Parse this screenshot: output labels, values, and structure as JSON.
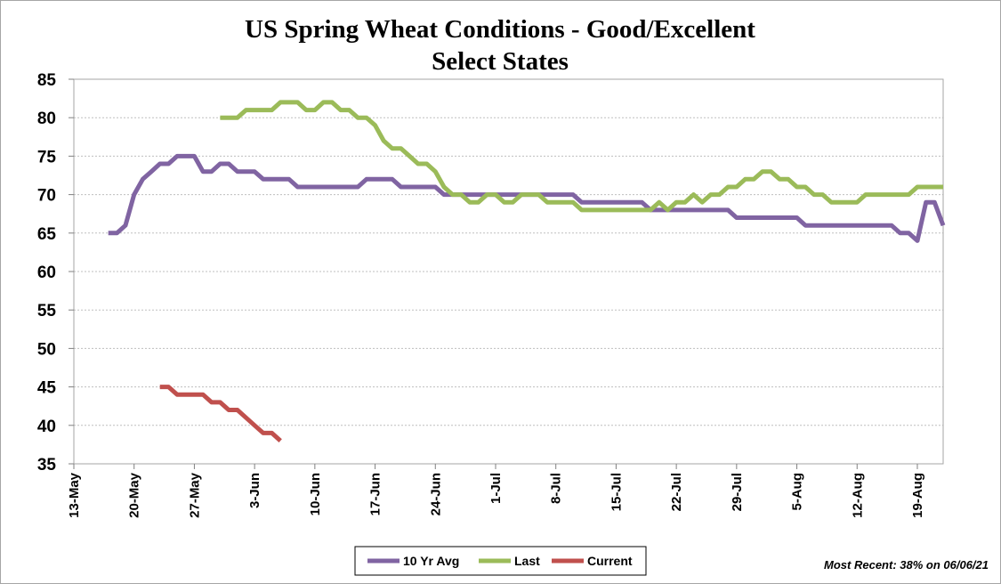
{
  "chart_data": {
    "type": "line",
    "title_line1": "US Spring Wheat Conditions - Good/Excellent",
    "title_line2": "Select States",
    "x_ticks": [
      "13-May",
      "20-May",
      "27-May",
      "3-Jun",
      "10-Jun",
      "17-Jun",
      "24-Jun",
      "1-Jul",
      "8-Jul",
      "15-Jul",
      "22-Jul",
      "29-Jul",
      "5-Aug",
      "12-Aug",
      "19-Aug"
    ],
    "y_ticks": [
      "85",
      "80",
      "75",
      "70",
      "65",
      "60",
      "55",
      "50",
      "45",
      "40",
      "35"
    ],
    "ylim": [
      35,
      85
    ],
    "xlim_days_from_13_may": [
      0,
      101
    ],
    "grid": true,
    "legend_position": "bottom",
    "series": [
      {
        "name": "10 Yr Avg",
        "color": "#8064a2",
        "points": [
          [
            4,
            65
          ],
          [
            5,
            65
          ],
          [
            6,
            66
          ],
          [
            7,
            70
          ],
          [
            8,
            72
          ],
          [
            9,
            73
          ],
          [
            10,
            74
          ],
          [
            11,
            74
          ],
          [
            12,
            75
          ],
          [
            13,
            75
          ],
          [
            14,
            75
          ],
          [
            15,
            73
          ],
          [
            16,
            73
          ],
          [
            17,
            74
          ],
          [
            18,
            74
          ],
          [
            19,
            73
          ],
          [
            20,
            73
          ],
          [
            21,
            73
          ],
          [
            22,
            72
          ],
          [
            23,
            72
          ],
          [
            24,
            72
          ],
          [
            25,
            72
          ],
          [
            26,
            71
          ],
          [
            27,
            71
          ],
          [
            28,
            71
          ],
          [
            29,
            71
          ],
          [
            30,
            71
          ],
          [
            31,
            71
          ],
          [
            32,
            71
          ],
          [
            33,
            71
          ],
          [
            34,
            72
          ],
          [
            35,
            72
          ],
          [
            36,
            72
          ],
          [
            37,
            72
          ],
          [
            38,
            71
          ],
          [
            39,
            71
          ],
          [
            40,
            71
          ],
          [
            41,
            71
          ],
          [
            42,
            71
          ],
          [
            43,
            70
          ],
          [
            44,
            70
          ],
          [
            45,
            70
          ],
          [
            46,
            70
          ],
          [
            47,
            70
          ],
          [
            48,
            70
          ],
          [
            49,
            70
          ],
          [
            50,
            70
          ],
          [
            51,
            70
          ],
          [
            52,
            70
          ],
          [
            53,
            70
          ],
          [
            54,
            70
          ],
          [
            55,
            70
          ],
          [
            56,
            70
          ],
          [
            57,
            70
          ],
          [
            58,
            70
          ],
          [
            59,
            69
          ],
          [
            60,
            69
          ],
          [
            61,
            69
          ],
          [
            62,
            69
          ],
          [
            63,
            69
          ],
          [
            64,
            69
          ],
          [
            65,
            69
          ],
          [
            66,
            69
          ],
          [
            67,
            68
          ],
          [
            68,
            68
          ],
          [
            69,
            68
          ],
          [
            70,
            68
          ],
          [
            71,
            68
          ],
          [
            72,
            68
          ],
          [
            73,
            68
          ],
          [
            74,
            68
          ],
          [
            75,
            68
          ],
          [
            76,
            68
          ],
          [
            77,
            67
          ],
          [
            78,
            67
          ],
          [
            79,
            67
          ],
          [
            80,
            67
          ],
          [
            81,
            67
          ],
          [
            82,
            67
          ],
          [
            83,
            67
          ],
          [
            84,
            67
          ],
          [
            85,
            66
          ],
          [
            86,
            66
          ],
          [
            87,
            66
          ],
          [
            88,
            66
          ],
          [
            89,
            66
          ],
          [
            90,
            66
          ],
          [
            91,
            66
          ],
          [
            92,
            66
          ],
          [
            93,
            66
          ],
          [
            94,
            66
          ],
          [
            95,
            66
          ],
          [
            96,
            65
          ],
          [
            97,
            65
          ],
          [
            98,
            64
          ],
          [
            99,
            69
          ],
          [
            100,
            69
          ],
          [
            101,
            66
          ]
        ]
      },
      {
        "name": "Last",
        "color": "#9bbb59",
        "points": [
          [
            17,
            80
          ],
          [
            18,
            80
          ],
          [
            19,
            80
          ],
          [
            20,
            81
          ],
          [
            21,
            81
          ],
          [
            22,
            81
          ],
          [
            23,
            81
          ],
          [
            24,
            82
          ],
          [
            25,
            82
          ],
          [
            26,
            82
          ],
          [
            27,
            81
          ],
          [
            28,
            81
          ],
          [
            29,
            82
          ],
          [
            30,
            82
          ],
          [
            31,
            81
          ],
          [
            32,
            81
          ],
          [
            33,
            80
          ],
          [
            34,
            80
          ],
          [
            35,
            79
          ],
          [
            36,
            77
          ],
          [
            37,
            76
          ],
          [
            38,
            76
          ],
          [
            39,
            75
          ],
          [
            40,
            74
          ],
          [
            41,
            74
          ],
          [
            42,
            73
          ],
          [
            43,
            71
          ],
          [
            44,
            70
          ],
          [
            45,
            70
          ],
          [
            46,
            69
          ],
          [
            47,
            69
          ],
          [
            48,
            70
          ],
          [
            49,
            70
          ],
          [
            50,
            69
          ],
          [
            51,
            69
          ],
          [
            52,
            70
          ],
          [
            53,
            70
          ],
          [
            54,
            70
          ],
          [
            55,
            69
          ],
          [
            56,
            69
          ],
          [
            57,
            69
          ],
          [
            58,
            69
          ],
          [
            59,
            68
          ],
          [
            60,
            68
          ],
          [
            61,
            68
          ],
          [
            62,
            68
          ],
          [
            63,
            68
          ],
          [
            64,
            68
          ],
          [
            65,
            68
          ],
          [
            66,
            68
          ],
          [
            67,
            68
          ],
          [
            68,
            69
          ],
          [
            69,
            68
          ],
          [
            70,
            69
          ],
          [
            71,
            69
          ],
          [
            72,
            70
          ],
          [
            73,
            69
          ],
          [
            74,
            70
          ],
          [
            75,
            70
          ],
          [
            76,
            71
          ],
          [
            77,
            71
          ],
          [
            78,
            72
          ],
          [
            79,
            72
          ],
          [
            80,
            73
          ],
          [
            81,
            73
          ],
          [
            82,
            72
          ],
          [
            83,
            72
          ],
          [
            84,
            71
          ],
          [
            85,
            71
          ],
          [
            86,
            70
          ],
          [
            87,
            70
          ],
          [
            88,
            69
          ],
          [
            89,
            69
          ],
          [
            90,
            69
          ],
          [
            91,
            69
          ],
          [
            92,
            70
          ],
          [
            93,
            70
          ],
          [
            94,
            70
          ],
          [
            95,
            70
          ],
          [
            96,
            70
          ],
          [
            97,
            70
          ],
          [
            98,
            71
          ],
          [
            99,
            71
          ],
          [
            100,
            71
          ],
          [
            101,
            71
          ]
        ]
      },
      {
        "name": "Current",
        "color": "#c0504d",
        "points": [
          [
            10,
            45
          ],
          [
            11,
            45
          ],
          [
            12,
            44
          ],
          [
            13,
            44
          ],
          [
            14,
            44
          ],
          [
            15,
            44
          ],
          [
            16,
            43
          ],
          [
            17,
            43
          ],
          [
            18,
            42
          ],
          [
            19,
            42
          ],
          [
            20,
            41
          ],
          [
            21,
            40
          ],
          [
            22,
            39
          ],
          [
            23,
            39
          ],
          [
            24,
            38
          ]
        ]
      }
    ],
    "note": "Most Recent: 38% on 06/06/21"
  }
}
